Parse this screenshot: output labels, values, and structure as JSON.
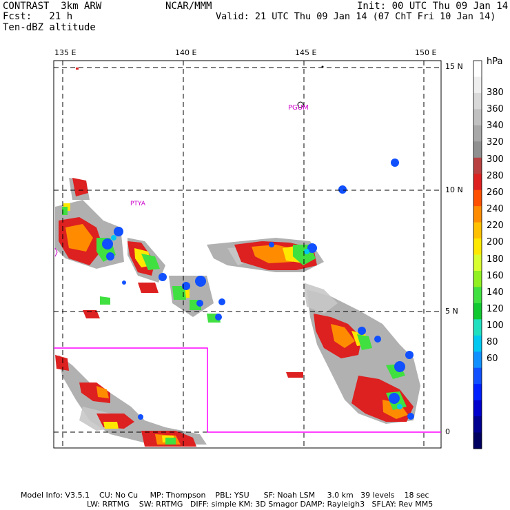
{
  "header": {
    "left_line1": "CONTRAST  3km ARW",
    "left_line2": "Fcst:   21 h",
    "left_line3": "Ten-dBZ altitude",
    "center": "NCAR/MMM",
    "init": "Init: 00 UTC Thu 09 Jan 14",
    "valid": "Valid: 21 UTC Thu 09 Jan 14 (07 ChT Fri 10 Jan 14)"
  },
  "map": {
    "lon_labels": [
      "135 E",
      "140 E",
      "145 E",
      "150 E"
    ],
    "lat_labels": [
      "15 N",
      "10 N",
      "5 N",
      "0"
    ],
    "station_labels": [
      "PGUM",
      "PTYA"
    ],
    "box_color": "#ff00ff",
    "station_color": "#cc00cc"
  },
  "colorbar": {
    "unit": "hPa",
    "levels": [
      "380",
      "360",
      "340",
      "320",
      "300",
      "280",
      "260",
      "240",
      "220",
      "200",
      "180",
      "160",
      "140",
      "120",
      "100",
      "80",
      "60"
    ],
    "colors": [
      "#ffffff",
      "#eeeeee",
      "#d8d8d8",
      "#c0c0c0",
      "#a8a8a8",
      "#909090",
      "#b84040",
      "#dd2020",
      "#ff5000",
      "#ff8c00",
      "#ffc000",
      "#ffe800",
      "#d8ff30",
      "#90f020",
      "#40e040",
      "#10c830",
      "#20e0c0",
      "#00c8f0",
      "#1090ff",
      "#1050ff",
      "#0020ff",
      "#0000cc",
      "#000090",
      "#000060"
    ]
  },
  "footer": {
    "line1": "Model Info: V3.5.1    CU: No Cu     MP: Thompson    PBL: YSU      SF: Noah LSM     3.0 km   39 levels    18 sec",
    "line2": "LW: RRTMG    SW: RRTMG   DIFF: simple KM: 3D Smagor DAMP: Rayleigh3   SFLAY: Rev MM5"
  }
}
